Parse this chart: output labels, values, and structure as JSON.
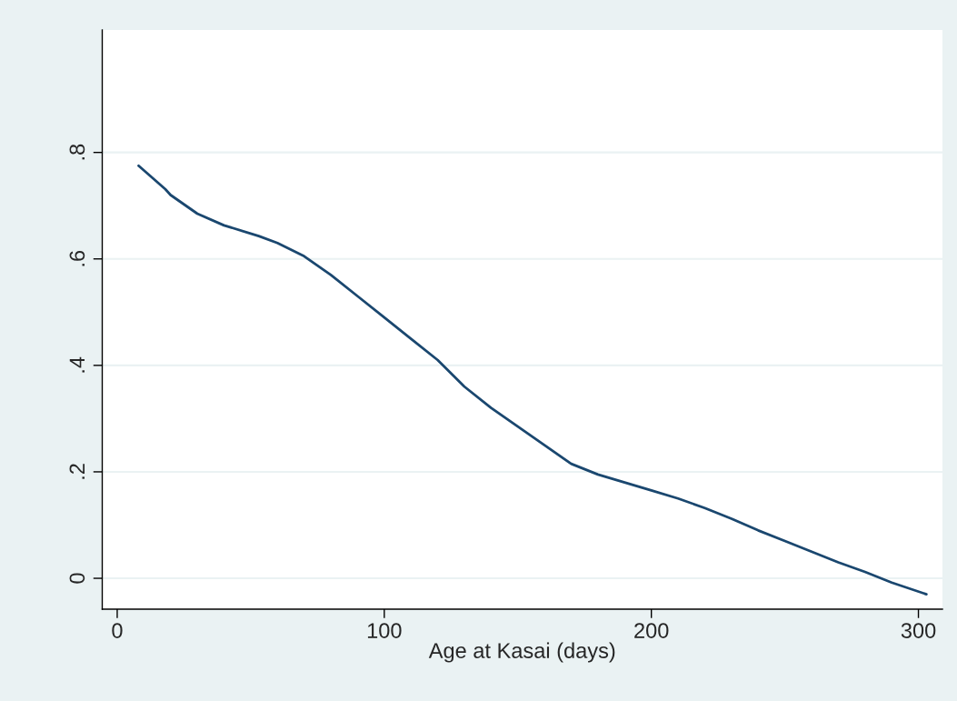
{
  "chart_data": {
    "type": "line",
    "xlabel": "Age at Kasai (days)",
    "x": [
      8,
      18,
      20,
      30,
      40,
      53,
      60,
      70,
      80,
      90,
      100,
      110,
      120,
      130,
      140,
      150,
      160,
      170,
      180,
      190,
      200,
      210,
      220,
      230,
      240,
      250,
      260,
      270,
      280,
      290,
      303
    ],
    "series": [
      {
        "color": "#1a476f",
        "values": [
          0.775,
          0.731,
          0.72,
          0.685,
          0.663,
          0.643,
          0.63,
          0.605,
          0.57,
          0.53,
          0.49,
          0.45,
          0.41,
          0.36,
          0.32,
          0.285,
          0.25,
          0.215,
          0.195,
          0.18,
          0.165,
          0.15,
          0.132,
          0.112,
          0.09,
          0.07,
          0.05,
          0.03,
          0.012,
          -0.008,
          -0.03
        ]
      }
    ],
    "xlim": [
      -5.6,
      309
    ],
    "ylim": [
      -0.058,
      1.03
    ],
    "xticks": [
      0,
      100,
      200,
      300
    ],
    "yticks": [
      0,
      {
        "value": 0.2,
        "label": ".2"
      },
      {
        "value": 0.4,
        "label": ".4"
      },
      {
        "value": 0.6,
        "label": ".6"
      },
      {
        "value": 0.8,
        "label": ".8"
      }
    ],
    "grid": "y",
    "marker": "none",
    "line_style": "solid"
  }
}
